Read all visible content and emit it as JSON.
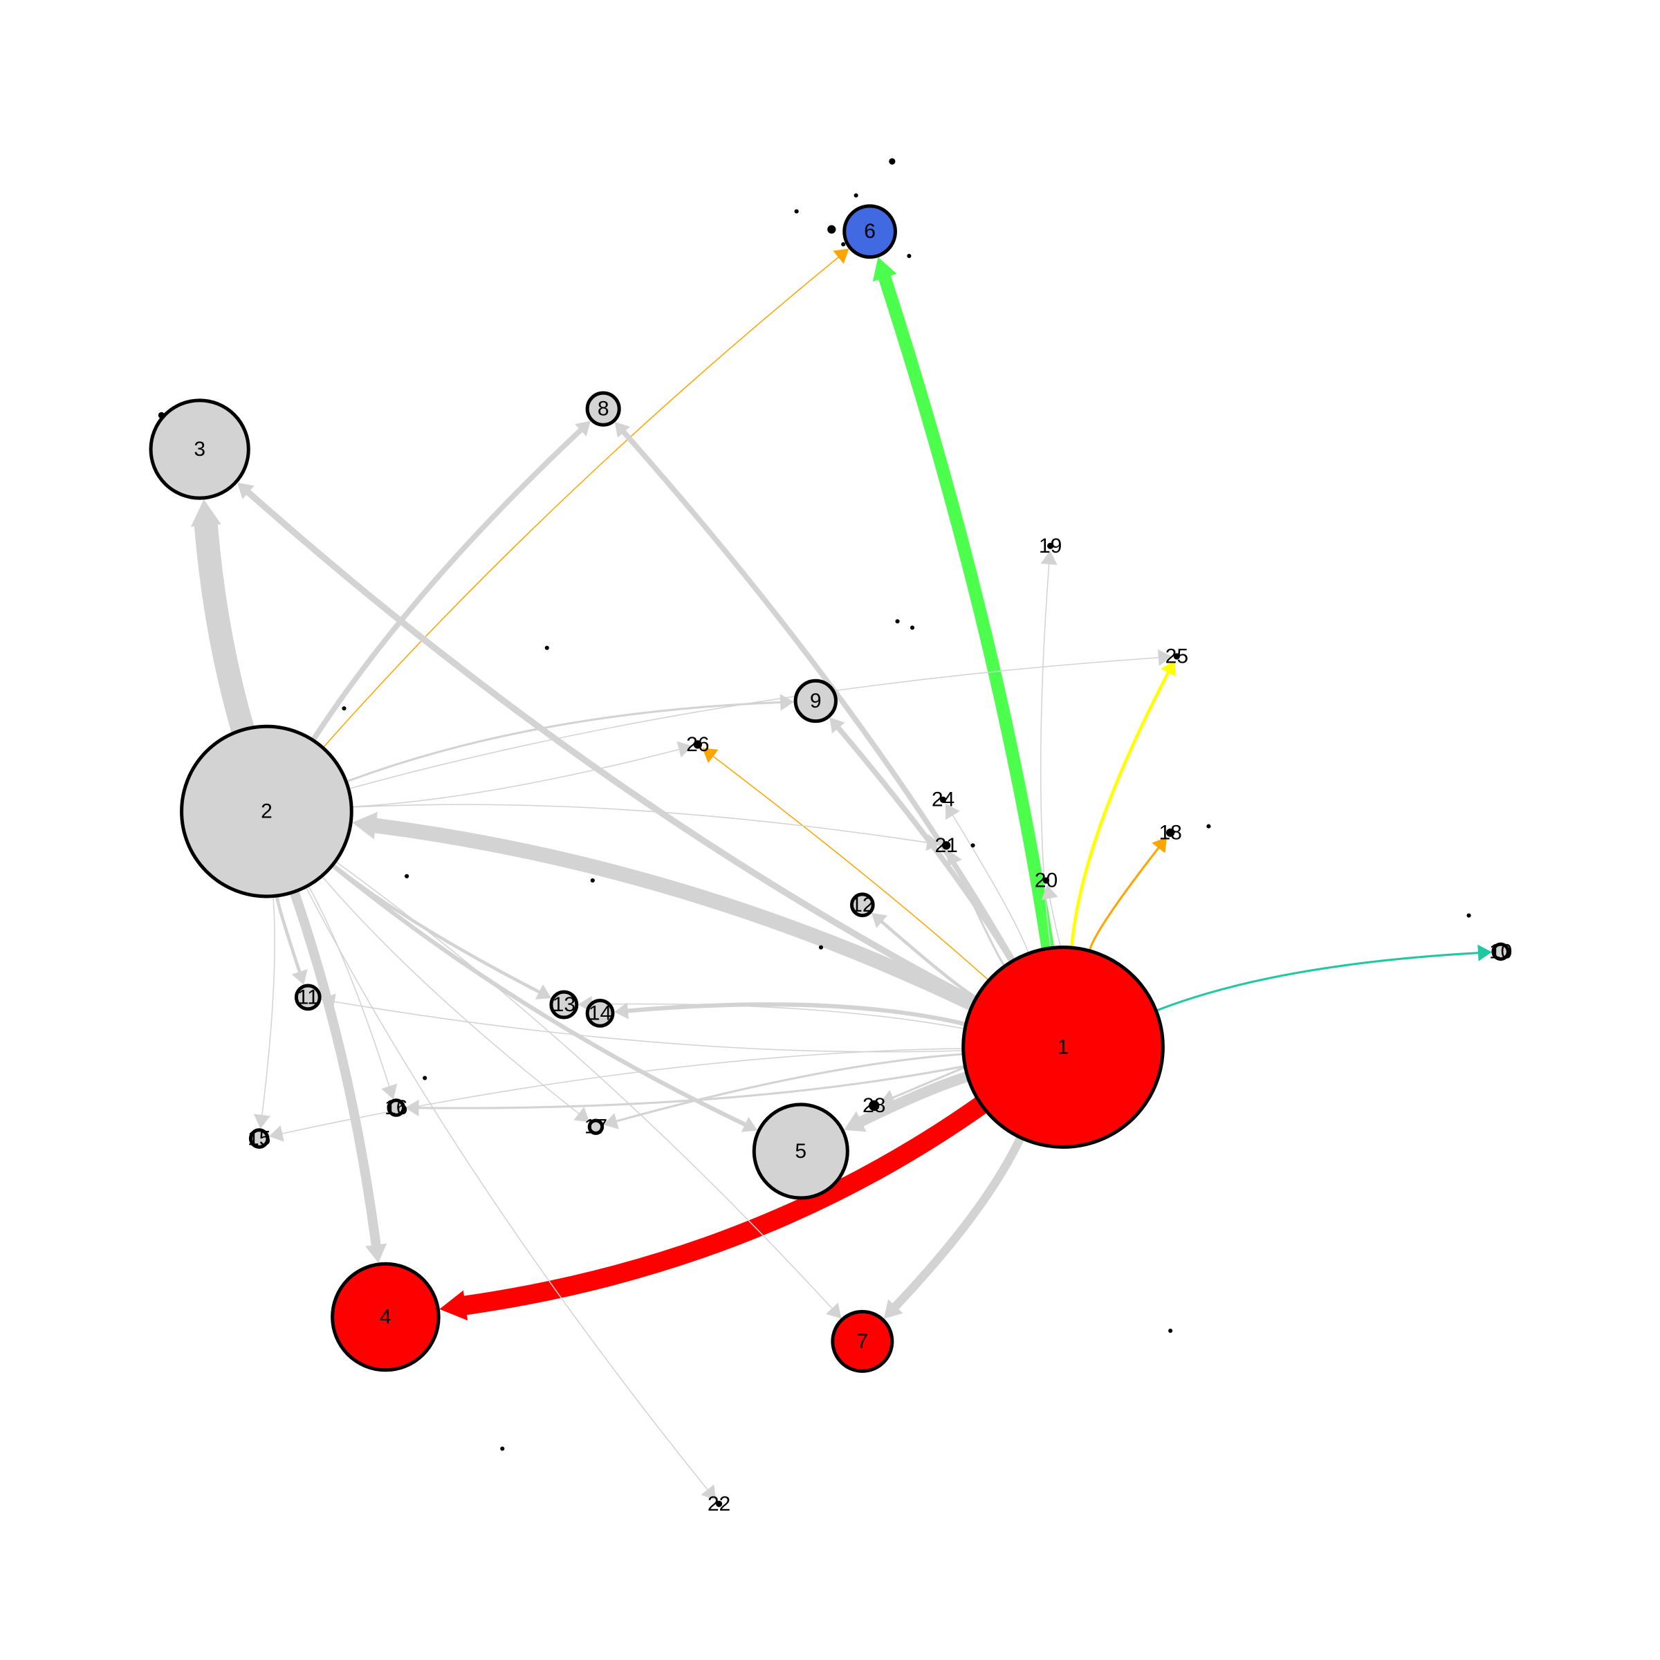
{
  "colors": {
    "default_edge": "#d3d3d3",
    "default_node": "#d3d3d3",
    "red": "#ff0000",
    "blue": "#4169e1",
    "green": "#4cff4c",
    "orange": "#ffa500",
    "yellow": "#ffff00",
    "teal": "#1fc8a0"
  },
  "nodes": [
    {
      "id": "1",
      "label": "1",
      "color": "red"
    },
    {
      "id": "2",
      "label": "2",
      "color": "default_node"
    },
    {
      "id": "3",
      "label": "3",
      "color": "default_node"
    },
    {
      "id": "4",
      "label": "4",
      "color": "red"
    },
    {
      "id": "5",
      "label": "5",
      "color": "default_node"
    },
    {
      "id": "6",
      "label": "6",
      "color": "blue"
    },
    {
      "id": "7",
      "label": "7",
      "color": "red"
    },
    {
      "id": "8",
      "label": "8",
      "color": "default_node"
    },
    {
      "id": "9",
      "label": "9",
      "color": "default_node"
    },
    {
      "id": "10",
      "label": "10",
      "color": "default_node"
    },
    {
      "id": "11",
      "label": "11",
      "color": "default_node"
    },
    {
      "id": "12",
      "label": "12",
      "color": "default_node"
    },
    {
      "id": "13",
      "label": "13",
      "color": "default_node"
    },
    {
      "id": "14",
      "label": "14",
      "color": "default_node"
    },
    {
      "id": "15",
      "label": "15",
      "color": "default_node"
    },
    {
      "id": "16",
      "label": "16",
      "color": "default_node"
    },
    {
      "id": "17",
      "label": "17",
      "color": "default_node"
    },
    {
      "id": "18",
      "label": "18",
      "color": "default_node"
    },
    {
      "id": "19",
      "label": "19",
      "color": "default_node"
    },
    {
      "id": "20",
      "label": "20",
      "color": "default_node"
    },
    {
      "id": "21",
      "label": "21",
      "color": "default_node"
    },
    {
      "id": "22",
      "label": "22",
      "color": "default_node"
    },
    {
      "id": "24",
      "label": "24",
      "color": "default_node"
    },
    {
      "id": "25",
      "label": "25",
      "color": "default_node"
    },
    {
      "id": "26",
      "label": "26",
      "color": "default_node"
    },
    {
      "id": "28",
      "label": "28",
      "color": "default_node"
    }
  ],
  "edges": [
    {
      "from": "1",
      "to": "6",
      "color": "green",
      "weight": 12
    },
    {
      "from": "1",
      "to": "4",
      "color": "red",
      "weight": 18
    },
    {
      "from": "1",
      "to": "25",
      "color": "yellow",
      "weight": 3
    },
    {
      "from": "1",
      "to": "18",
      "color": "orange",
      "weight": 2
    },
    {
      "from": "1",
      "to": "10",
      "color": "teal",
      "weight": 2
    },
    {
      "from": "2",
      "to": "6",
      "color": "orange",
      "weight": 1
    },
    {
      "from": "1",
      "to": "26",
      "color": "orange",
      "weight": 1
    },
    {
      "from": "2",
      "to": "3",
      "color": "default_edge",
      "weight": 22
    },
    {
      "from": "1",
      "to": "2",
      "color": "default_edge",
      "weight": 14
    },
    {
      "from": "1",
      "to": "3",
      "color": "default_edge",
      "weight": 6
    },
    {
      "from": "2",
      "to": "4",
      "color": "default_edge",
      "weight": 9
    },
    {
      "from": "1",
      "to": "7",
      "color": "default_edge",
      "weight": 8
    },
    {
      "from": "1",
      "to": "5",
      "color": "default_edge",
      "weight": 10
    },
    {
      "from": "1",
      "to": "8",
      "color": "default_edge",
      "weight": 5
    },
    {
      "from": "2",
      "to": "8",
      "color": "default_edge",
      "weight": 5
    },
    {
      "from": "1",
      "to": "9",
      "color": "default_edge",
      "weight": 5
    },
    {
      "from": "2",
      "to": "9",
      "color": "default_edge",
      "weight": 2
    },
    {
      "from": "1",
      "to": "14",
      "color": "default_edge",
      "weight": 4
    },
    {
      "from": "2",
      "to": "5",
      "color": "default_edge",
      "weight": 4
    },
    {
      "from": "2",
      "to": "11",
      "color": "default_edge",
      "weight": 3
    },
    {
      "from": "1",
      "to": "12",
      "color": "default_edge",
      "weight": 3
    },
    {
      "from": "2",
      "to": "13",
      "color": "default_edge",
      "weight": 3
    },
    {
      "from": "1",
      "to": "16",
      "color": "default_edge",
      "weight": 2
    },
    {
      "from": "1",
      "to": "17",
      "color": "default_edge",
      "weight": 2
    },
    {
      "from": "2",
      "to": "15",
      "color": "default_edge",
      "weight": 1
    },
    {
      "from": "1",
      "to": "15",
      "color": "default_edge",
      "weight": 1
    },
    {
      "from": "2",
      "to": "16",
      "color": "default_edge",
      "weight": 1
    },
    {
      "from": "2",
      "to": "17",
      "color": "default_edge",
      "weight": 1
    },
    {
      "from": "1",
      "to": "19",
      "color": "default_edge",
      "weight": 1
    },
    {
      "from": "1",
      "to": "20",
      "color": "default_edge",
      "weight": 1
    },
    {
      "from": "1",
      "to": "21",
      "color": "default_edge",
      "weight": 2
    },
    {
      "from": "1",
      "to": "24",
      "color": "default_edge",
      "weight": 1
    },
    {
      "from": "2",
      "to": "25",
      "color": "default_edge",
      "weight": 1
    },
    {
      "from": "2",
      "to": "26",
      "color": "default_edge",
      "weight": 1
    },
    {
      "from": "2",
      "to": "21",
      "color": "default_edge",
      "weight": 1
    },
    {
      "from": "2",
      "to": "22",
      "color": "default_edge",
      "weight": 1
    },
    {
      "from": "2",
      "to": "7",
      "color": "default_edge",
      "weight": 1
    },
    {
      "from": "1",
      "to": "28",
      "color": "default_edge",
      "weight": 2
    },
    {
      "from": "1",
      "to": "11",
      "color": "default_edge",
      "weight": 1
    },
    {
      "from": "1",
      "to": "13",
      "color": "default_edge",
      "weight": 1
    }
  ]
}
